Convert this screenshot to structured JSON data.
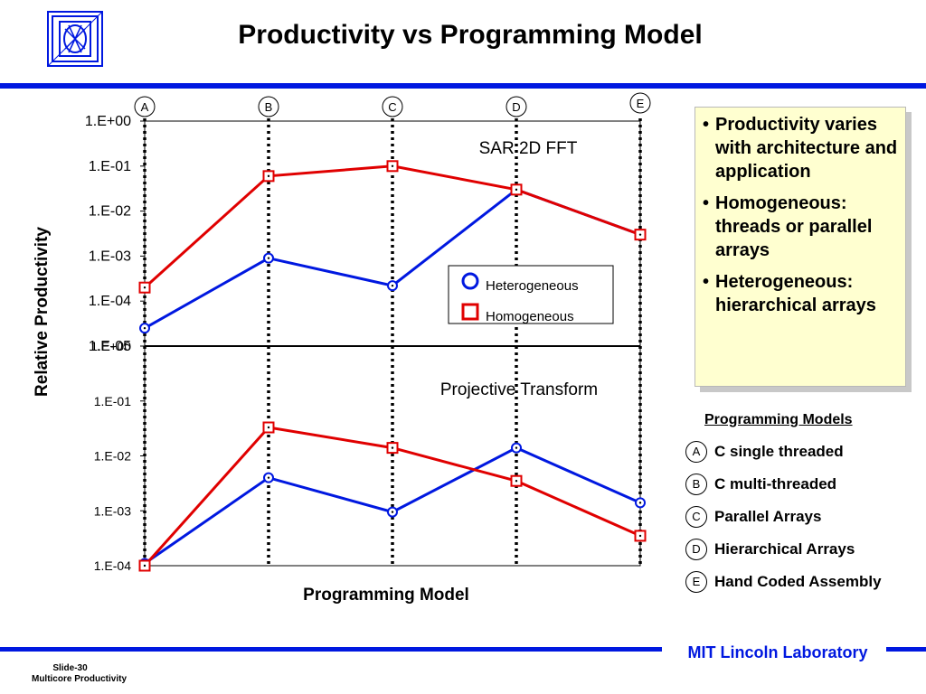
{
  "slide": {
    "title": "Productivity vs Programming Model",
    "slide_number": "Slide-30",
    "subtitle": "Multicore Productivity",
    "lab_name": "MIT Lincoln Laboratory"
  },
  "colors": {
    "accent_blue": "#0018e0",
    "heterogeneous": "#0018e0",
    "homogeneous": "#e00000",
    "bullet_box": "#ffffd0"
  },
  "logo_icon": "mit-ll-logo-icon",
  "bullets": [
    "Productivity varies with architecture and application",
    "Homogeneous: threads or parallel arrays",
    "Heterogeneous: hierarchical arrays"
  ],
  "programming_models": {
    "title": "Programming Models",
    "items": [
      {
        "letter": "A",
        "label": "C single threaded"
      },
      {
        "letter": "B",
        "label": "C multi-threaded"
      },
      {
        "letter": "C",
        "label": "Parallel Arrays"
      },
      {
        "letter": "D",
        "label": "Hierarchical Arrays"
      },
      {
        "letter": "E",
        "label": "Hand Coded Assembly"
      }
    ]
  },
  "chart_data": [
    {
      "type": "line",
      "title": "SAR 2D FFT",
      "x": [
        "A",
        "B",
        "C",
        "D",
        "E"
      ],
      "ylabel": "Relative Productivity",
      "yscale": "log",
      "ylim": [
        1e-05,
        1
      ],
      "yticks": [
        "1.E+00",
        "1.E-01",
        "1.E-02",
        "1.E-03",
        "1.E-04",
        "1.E-05"
      ],
      "series": [
        {
          "name": "Heterogeneous",
          "marker": "circle",
          "values": [
            2.5e-05,
            0.0009,
            0.00022,
            0.03,
            0.003
          ]
        },
        {
          "name": "Homogeneous",
          "marker": "square",
          "values": [
            0.0002,
            0.06,
            0.1,
            0.03,
            0.003
          ]
        }
      ],
      "legend": "center-right"
    },
    {
      "type": "line",
      "title": "Projective Transform",
      "x": [
        "A",
        "B",
        "C",
        "D",
        "E"
      ],
      "xlabel": "Programming Model",
      "ylabel": "Relative Productivity",
      "yscale": "log",
      "ylim": [
        0.0001,
        1
      ],
      "yticks": [
        "1.E+00",
        "1.E-01",
        "1.E-02",
        "1.E-03",
        "1.E-04"
      ],
      "series": [
        {
          "name": "Heterogeneous",
          "marker": "circle",
          "values": [
            0.00011,
            0.004,
            0.00095,
            0.014,
            0.0014
          ]
        },
        {
          "name": "Homogeneous",
          "marker": "square",
          "values": [
            0.0001,
            0.033,
            0.014,
            0.0035,
            0.00035
          ]
        }
      ]
    }
  ]
}
